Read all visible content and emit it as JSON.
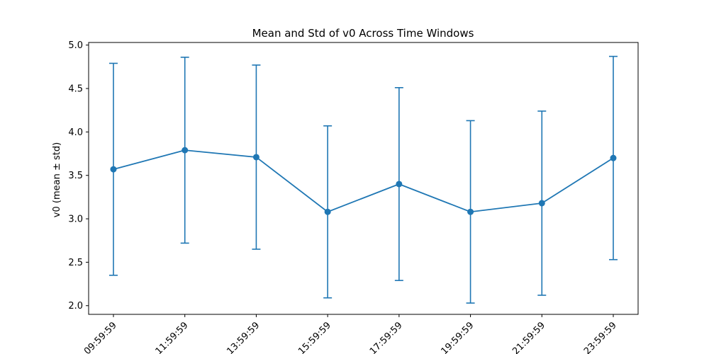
{
  "chart_data": {
    "type": "line",
    "title": "Mean and Std of v0 Across Time Windows",
    "xlabel": "",
    "ylabel": "v0 (mean ± std)",
    "x": [
      "09:59:59",
      "11:59:59",
      "13:59:59",
      "15:59:59",
      "17:59:59",
      "19:59:59",
      "21:59:59",
      "23:59:59"
    ],
    "series": [
      {
        "values": [
          3.57,
          3.79,
          3.71,
          3.08,
          3.4,
          3.08,
          3.18,
          3.7
        ],
        "std": [
          1.22,
          1.07,
          1.06,
          0.99,
          1.11,
          1.05,
          1.06,
          1.17
        ]
      }
    ],
    "ylim": [
      1.9,
      5.03
    ],
    "yticks": [
      "2.0",
      "2.5",
      "3.0",
      "3.5",
      "4.0",
      "4.5",
      "5.0"
    ],
    "grid": false,
    "legend": "none",
    "colors": {
      "series": "#1f77b4",
      "axes": "#000000"
    }
  }
}
